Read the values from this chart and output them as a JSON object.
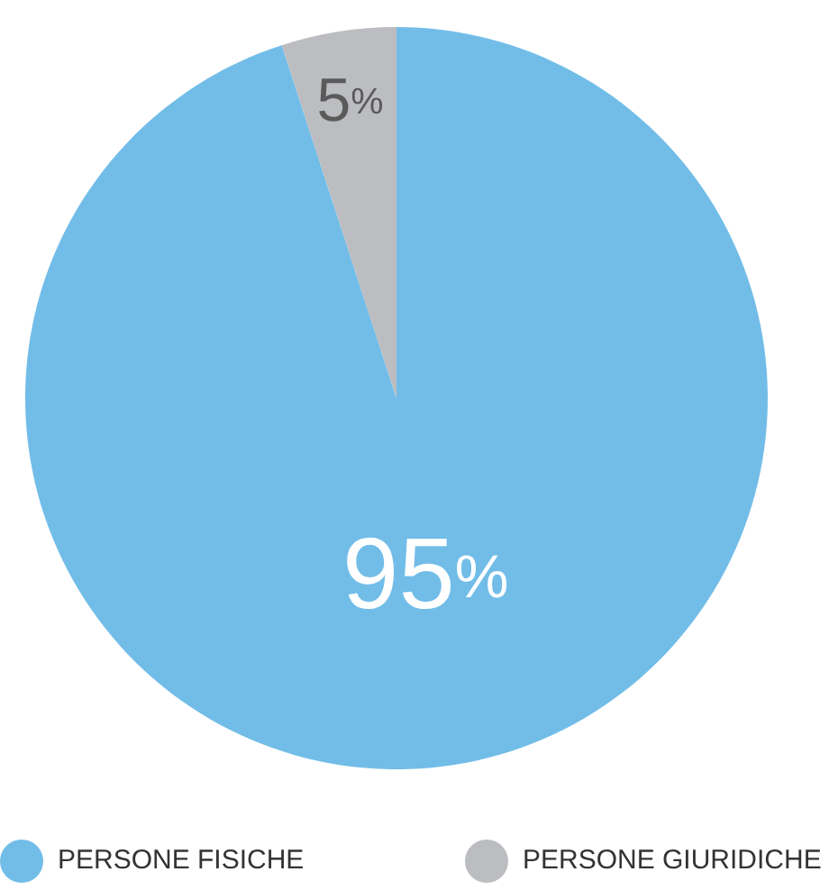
{
  "chart_data": {
    "type": "pie",
    "categories": [
      "PERSONE FISICHE",
      "PERSONE GIURIDICHE"
    ],
    "values": [
      95,
      5
    ],
    "colors": [
      "#72bde8",
      "#bcbdc0"
    ],
    "value_labels": [
      "95%",
      "5%"
    ],
    "legend": "bottom"
  }
}
